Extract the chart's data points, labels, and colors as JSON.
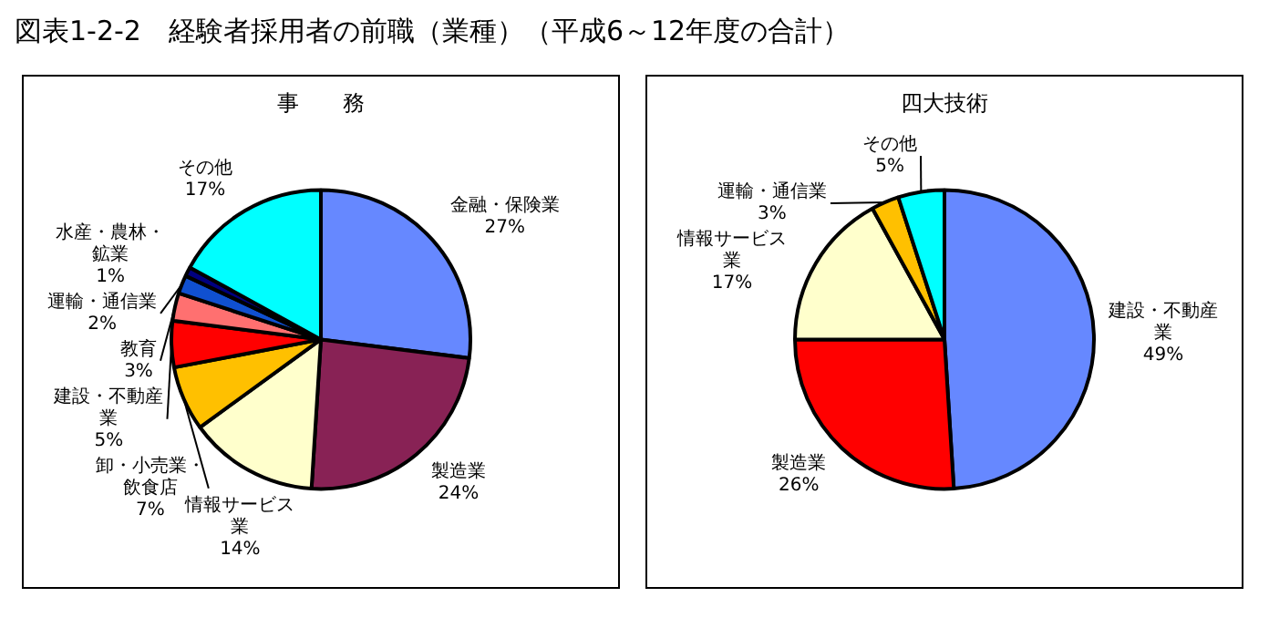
{
  "chart_data": [
    {
      "type": "pie",
      "title": "事　　務",
      "annotations": [
        "図表1-2-2　経験者採用者の前職（業種）（平成6～12年度の合計）"
      ],
      "categories": [
        "金融・保険業",
        "製造業",
        "情報サービス業",
        "卸・小売業・飲食店",
        "建設・不動産業",
        "教育",
        "運輸・通信業",
        "水産・農林・鉱業",
        "その他"
      ],
      "values": [
        27,
        24,
        14,
        7,
        5,
        3,
        2,
        1,
        17
      ],
      "value_labels": [
        "27%",
        "24%",
        "14%",
        "7%",
        "5%",
        "3%",
        "2%",
        "1%",
        "17%"
      ],
      "colors": [
        "#6688ff",
        "#882255",
        "#ffffcc",
        "#ffc000",
        "#ff0000",
        "#ff7070",
        "#1050d0",
        "#000080",
        "#00ffff"
      ]
    },
    {
      "type": "pie",
      "title": "四大技術",
      "categories": [
        "建設・不動産業",
        "製造業",
        "情報サービス業",
        "運輸・通信業",
        "その他"
      ],
      "values": [
        49,
        26,
        17,
        3,
        5
      ],
      "value_labels": [
        "49%",
        "26%",
        "17%",
        "3%",
        "5%"
      ],
      "colors": [
        "#6688ff",
        "#ff0000",
        "#ffffcc",
        "#ffc000",
        "#00ffff"
      ]
    }
  ]
}
